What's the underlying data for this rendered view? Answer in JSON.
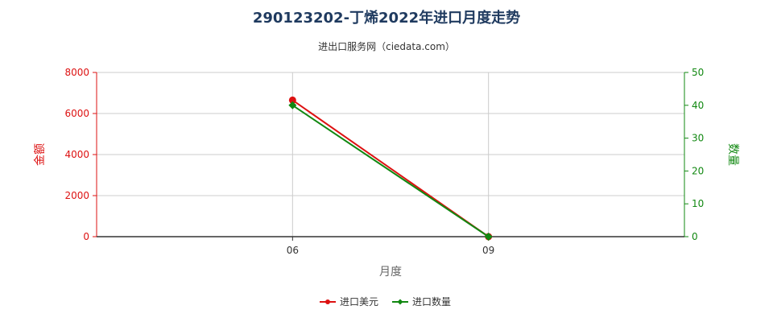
{
  "title": "290123202-丁烯2022年进口月度走势",
  "subtitle": "进出口服务网（ciedata.com）",
  "colors": {
    "left_axis": "#dd1111",
    "right_axis": "#118811",
    "grid": "#cccccc",
    "title": "#1f3a5f"
  },
  "chart_data": {
    "type": "line",
    "categories": [
      "06",
      "09"
    ],
    "xlabel": "月度",
    "y_left": {
      "label": "金额",
      "ylim": [
        0,
        8000
      ],
      "ticks": [
        "0",
        "2000",
        "4000",
        "6000",
        "8000"
      ]
    },
    "y_right": {
      "label": "数量",
      "ylim": [
        0,
        50
      ],
      "ticks": [
        "0",
        "10",
        "20",
        "30",
        "40",
        "50"
      ]
    },
    "series": [
      {
        "name": "进口美元",
        "axis": "left",
        "color": "#dd1111",
        "marker": "circle",
        "values": [
          6650,
          0
        ]
      },
      {
        "name": "进口数量",
        "axis": "right",
        "color": "#118811",
        "marker": "diamond",
        "values": [
          40,
          0
        ]
      }
    ],
    "grid": true,
    "legend": "bottom-center"
  }
}
